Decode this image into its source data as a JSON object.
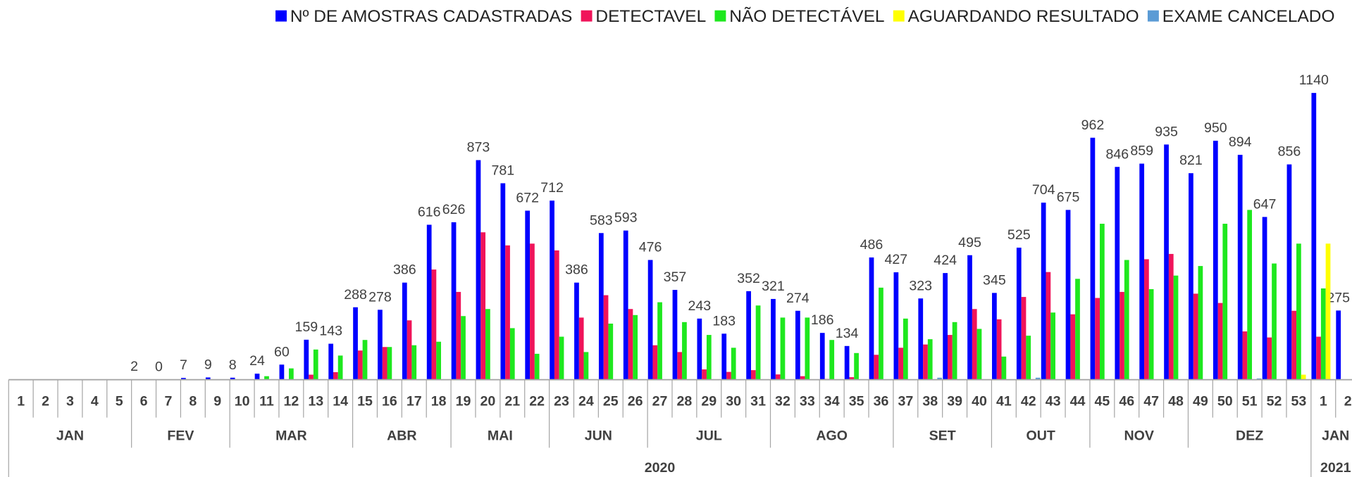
{
  "chart_data": {
    "type": "bar",
    "ylim": [
      0,
      1400
    ],
    "categories": [
      "1",
      "2",
      "3",
      "4",
      "5",
      "6",
      "7",
      "8",
      "9",
      "10",
      "11",
      "12",
      "13",
      "14",
      "15",
      "16",
      "17",
      "18",
      "19",
      "20",
      "21",
      "22",
      "23",
      "24",
      "25",
      "26",
      "27",
      "28",
      "29",
      "30",
      "31",
      "32",
      "33",
      "34",
      "35",
      "36",
      "37",
      "38",
      "39",
      "40",
      "41",
      "42",
      "43",
      "44",
      "45",
      "46",
      "47",
      "48",
      "49",
      "50",
      "51",
      "52",
      "53",
      "1",
      "2"
    ],
    "category_months": [
      "JAN",
      "JAN",
      "JAN",
      "JAN",
      "JAN",
      "FEV",
      "FEV",
      "FEV",
      "FEV",
      "MAR",
      "MAR",
      "MAR",
      "MAR",
      "MAR",
      "ABR",
      "ABR",
      "ABR",
      "ABR",
      "MAI",
      "MAI",
      "MAI",
      "MAI",
      "JUN",
      "JUN",
      "JUN",
      "JUN",
      "JUL",
      "JUL",
      "JUL",
      "JUL",
      "JUL",
      "AGO",
      "AGO",
      "AGO",
      "AGO",
      "AGO",
      "SET",
      "SET",
      "SET",
      "SET",
      "OUT",
      "OUT",
      "OUT",
      "OUT",
      "NOV",
      "NOV",
      "NOV",
      "NOV",
      "DEZ",
      "DEZ",
      "DEZ",
      "DEZ",
      "DEZ",
      "JAN",
      "JAN"
    ],
    "category_years": [
      "2020",
      "2020",
      "2020",
      "2020",
      "2020",
      "2020",
      "2020",
      "2020",
      "2020",
      "2020",
      "2020",
      "2020",
      "2020",
      "2020",
      "2020",
      "2020",
      "2020",
      "2020",
      "2020",
      "2020",
      "2020",
      "2020",
      "2020",
      "2020",
      "2020",
      "2020",
      "2020",
      "2020",
      "2020",
      "2020",
      "2020",
      "2020",
      "2020",
      "2020",
      "2020",
      "2020",
      "2020",
      "2020",
      "2020",
      "2020",
      "2020",
      "2020",
      "2020",
      "2020",
      "2020",
      "2020",
      "2020",
      "2020",
      "2020",
      "2020",
      "2020",
      "2020",
      "2020",
      "2021",
      "2021"
    ],
    "series": [
      {
        "name": "Nº DE AMOSTRAS CADASTRADAS",
        "color": "#0000ff",
        "data_labels": true,
        "values": [
          null,
          null,
          null,
          null,
          null,
          2,
          0,
          7,
          9,
          8,
          24,
          60,
          159,
          143,
          288,
          278,
          386,
          616,
          626,
          873,
          781,
          672,
          712,
          386,
          583,
          593,
          476,
          357,
          243,
          183,
          352,
          321,
          274,
          186,
          134,
          486,
          427,
          323,
          424,
          495,
          345,
          525,
          704,
          675,
          962,
          846,
          859,
          935,
          821,
          950,
          894,
          647,
          856,
          1140,
          275
        ]
      },
      {
        "name": "DETECTAVEL",
        "color": "#f0145a",
        "values": [
          null,
          null,
          null,
          null,
          null,
          0,
          0,
          0,
          0,
          0,
          0,
          0,
          20,
          30,
          116,
          130,
          236,
          438,
          349,
          586,
          534,
          541,
          514,
          247,
          336,
          281,
          137,
          110,
          41,
          31,
          38,
          21,
          14,
          3,
          10,
          99,
          127,
          140,
          178,
          281,
          240,
          329,
          428,
          260,
          325,
          349,
          479,
          500,
          342,
          305,
          192,
          168,
          274,
          171,
          0
        ]
      },
      {
        "name": "NÃO DETECTÁVEL",
        "color": "#1ee81e",
        "values": [
          null,
          null,
          null,
          null,
          null,
          0,
          0,
          1,
          1,
          2,
          14,
          45,
          120,
          96,
          158,
          130,
          137,
          151,
          253,
          281,
          205,
          103,
          171,
          110,
          223,
          257,
          308,
          229,
          178,
          127,
          295,
          247,
          247,
          158,
          106,
          366,
          243,
          161,
          229,
          202,
          92,
          175,
          267,
          401,
          620,
          476,
          360,
          414,
          452,
          620,
          675,
          462,
          541,
          363,
          0
        ]
      },
      {
        "name": "AGUARDANDO RESULTADO",
        "color": "#ffff00",
        "values": [
          null,
          null,
          null,
          null,
          null,
          0,
          0,
          0,
          0,
          0,
          0,
          0,
          0,
          0,
          0,
          0,
          0,
          0,
          0,
          0,
          0,
          0,
          0,
          0,
          0,
          0,
          0,
          0,
          0,
          0,
          0,
          0,
          0,
          0,
          0,
          0,
          0,
          0,
          0,
          0,
          0,
          0,
          0,
          0,
          0,
          0,
          0,
          0,
          0,
          0,
          0,
          0,
          20,
          541,
          0
        ]
      },
      {
        "name": "EXAME CANCELADO",
        "color": "#5b9bd5",
        "values": [
          null,
          null,
          null,
          null,
          null,
          0,
          0,
          0,
          0,
          0,
          0,
          0,
          0,
          0,
          0,
          0,
          0,
          0,
          0,
          0,
          0,
          0,
          0,
          0,
          0,
          0,
          0,
          0,
          0,
          0,
          0,
          0,
          0,
          0,
          0,
          0,
          0,
          8,
          0,
          0,
          0,
          8,
          0,
          0,
          0,
          0,
          0,
          0,
          0,
          0,
          5,
          0,
          0,
          0,
          0
        ]
      }
    ]
  }
}
